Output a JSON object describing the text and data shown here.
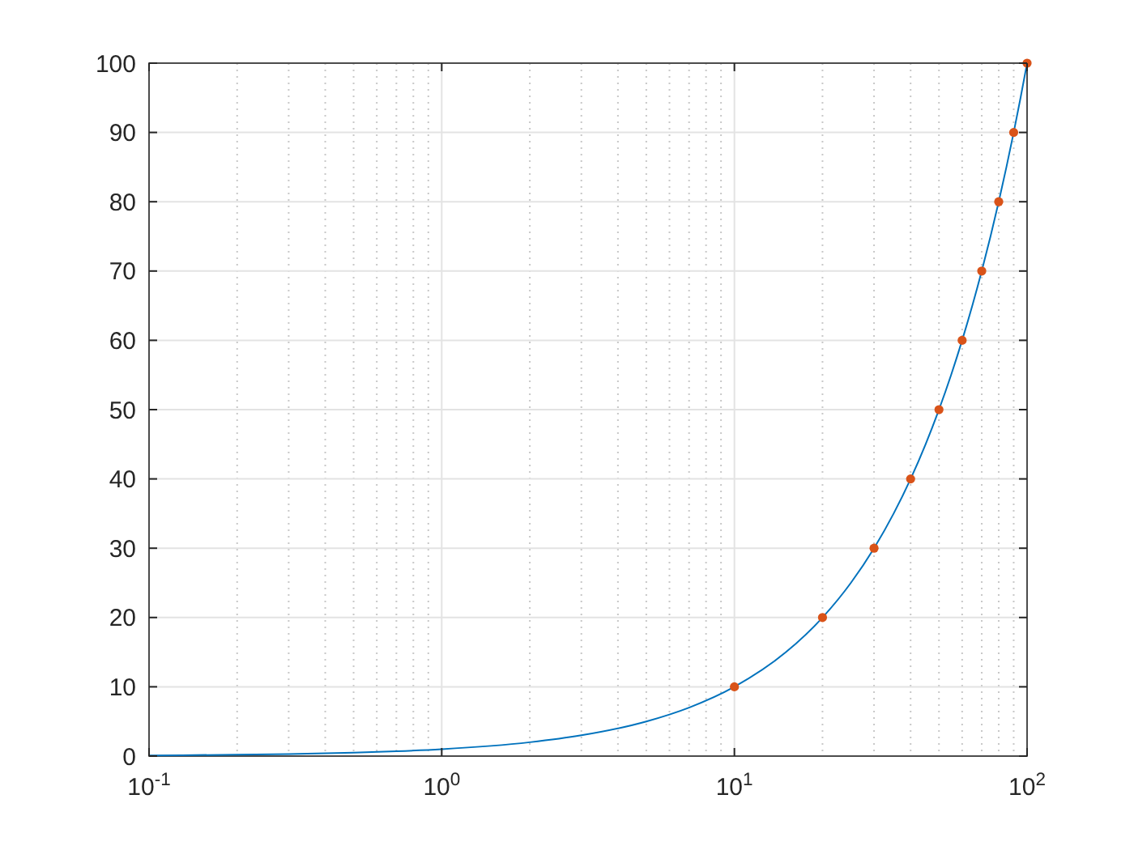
{
  "chart_data": {
    "type": "line",
    "log": "x",
    "grid": true,
    "xlim": [
      0.1,
      100
    ],
    "ylim": [
      0,
      100
    ],
    "xticks": [
      {
        "value": 0.1,
        "label": "10$^{-1}$"
      },
      {
        "value": 1,
        "label": "10$^{0}$"
      },
      {
        "value": 10,
        "label": "10$^{1}$"
      },
      {
        "value": 100,
        "label": "10$^{2}$"
      }
    ],
    "yticks": [
      0,
      10,
      20,
      30,
      40,
      50,
      60,
      70,
      80,
      90,
      100
    ],
    "series": [
      {
        "color": "#0072bd",
        "line_style": "solid",
        "marker": "none",
        "x": [
          0.1,
          0.2,
          0.3,
          0.5,
          0.7,
          1,
          2,
          3,
          5,
          7,
          10,
          15,
          20,
          25,
          30,
          35,
          40,
          45,
          50,
          55,
          60,
          65,
          70,
          75,
          80,
          85,
          90,
          95,
          100
        ],
        "values": [
          0.1,
          0.2,
          0.3,
          0.5,
          0.7,
          1,
          2,
          3,
          5,
          7,
          10,
          15,
          20,
          25,
          30,
          35,
          40,
          45,
          50,
          55,
          60,
          65,
          70,
          75,
          80,
          85,
          90,
          95,
          100
        ]
      },
      {
        "type": "scatter",
        "color": "#d95319",
        "marker": "circle",
        "x": [
          10,
          20,
          30,
          40,
          50,
          60,
          70,
          80,
          90,
          100
        ],
        "values": [
          10,
          20,
          30,
          40,
          50,
          60,
          70,
          80,
          90,
          100
        ]
      }
    ]
  }
}
